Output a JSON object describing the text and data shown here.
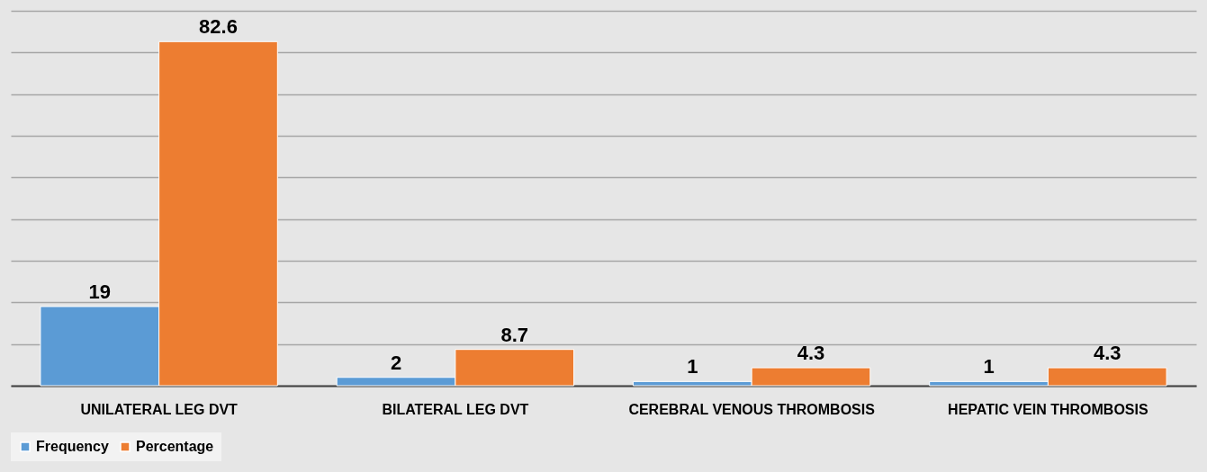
{
  "chart_data": {
    "type": "bar",
    "categories": [
      "UNILATERAL LEG DVT",
      "BILATERAL LEG DVT",
      "CEREBRAL VENOUS THROMBOSIS",
      "HEPATIC VEIN THROMBOSIS"
    ],
    "series": [
      {
        "name": "Frequency",
        "color": "#5b9bd5",
        "values": [
          19,
          2,
          1,
          1
        ]
      },
      {
        "name": "Percentage",
        "color": "#ed7d31",
        "values": [
          82.6,
          8.7,
          4.3,
          4.3
        ]
      }
    ],
    "tick_labels": "x",
    "grid": "y",
    "legend": "bottom",
    "data_labels": true
  }
}
